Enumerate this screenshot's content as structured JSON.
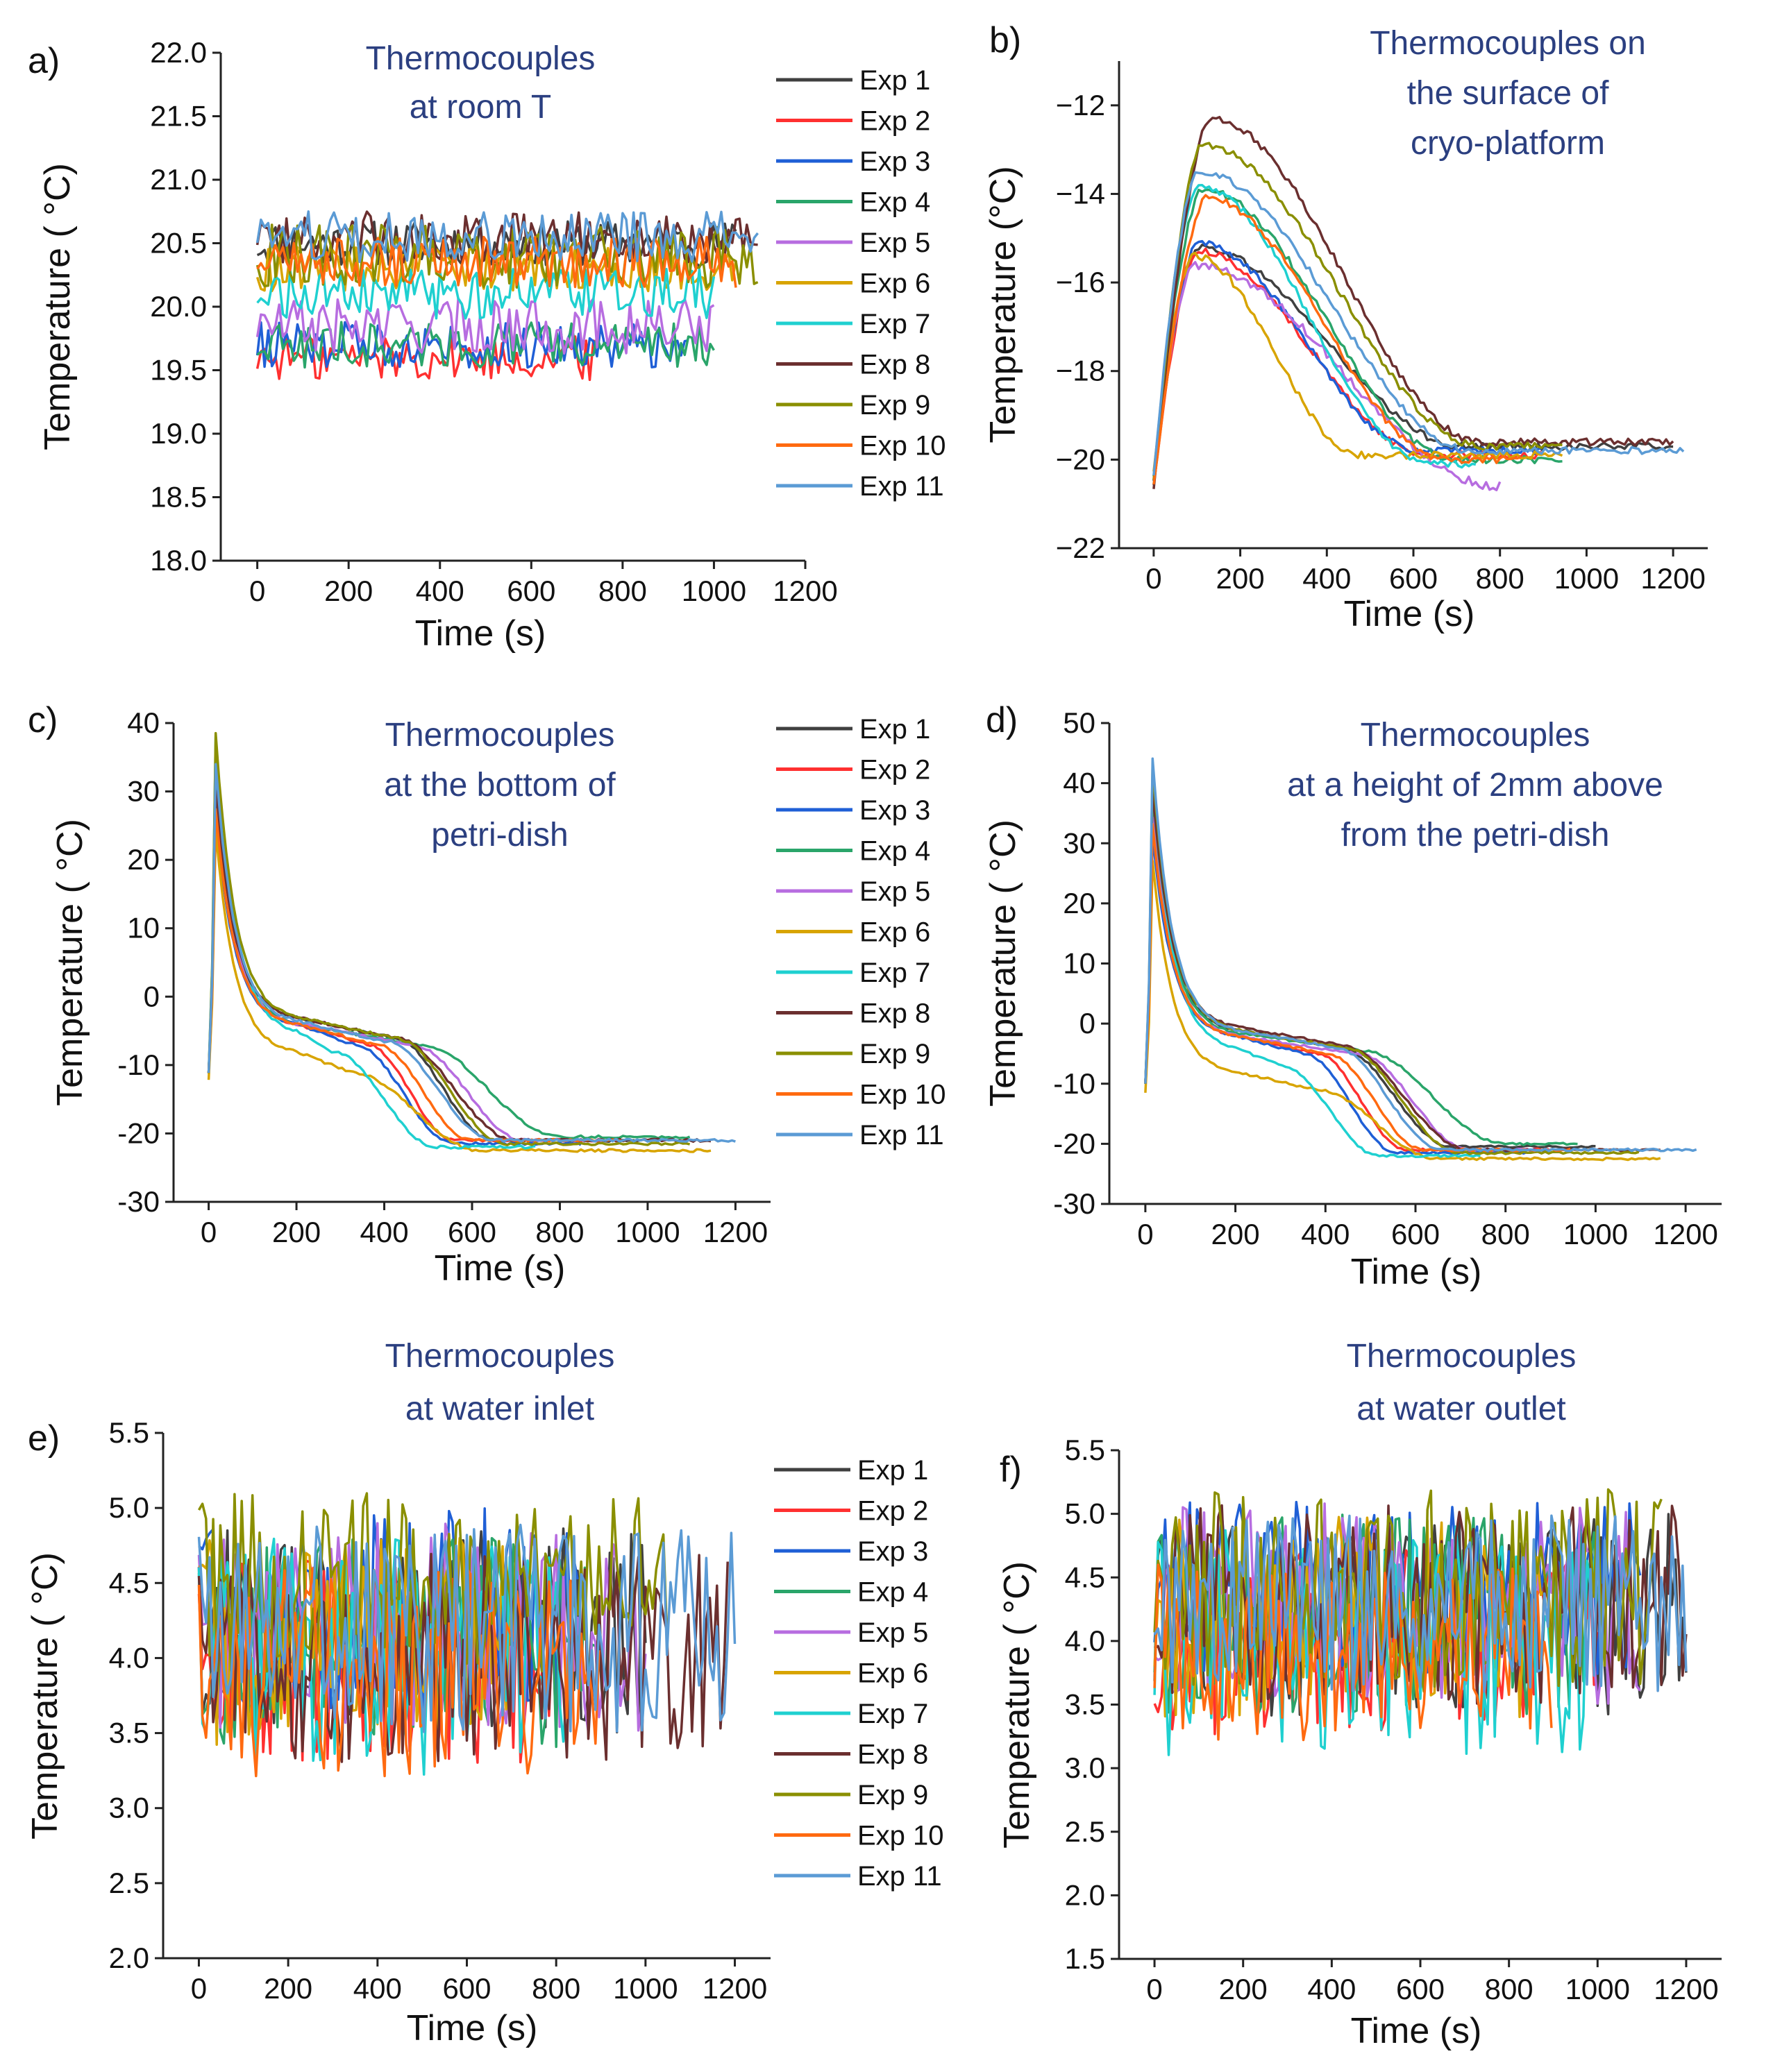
{
  "figure": {
    "caption_hidden": false
  },
  "series_colors": {
    "Exp 1": "#404040",
    "Exp 2": "#ff3030",
    "Exp 3": "#1f5fd6",
    "Exp 4": "#2aa56a",
    "Exp 5": "#b76de0",
    "Exp 6": "#d8a400",
    "Exp 7": "#1fd0d0",
    "Exp 8": "#6b2f2f",
    "Exp 9": "#8a8f00",
    "Exp 10": "#ff6a10",
    "Exp 11": "#5b9bd5"
  },
  "chart_data": [
    {
      "panel": "a)",
      "type": "line",
      "title_lines": [
        "Thermocouples",
        "at room T"
      ],
      "xlabel": "Time (s)",
      "ylabel": "Temperature ( °C)",
      "xlim": [
        -80,
        1200
      ],
      "ylim": [
        18.0,
        22.0
      ],
      "xticks": [
        0,
        200,
        400,
        600,
        800,
        1000,
        1200
      ],
      "yticks": [
        "18.0",
        "18.5",
        "19.0",
        "19.5",
        "20.0",
        "20.5",
        "21.0",
        "21.5",
        "22.0"
      ],
      "legend": [
        "Exp 1",
        "Exp 2",
        "Exp 3",
        "Exp 4",
        "Exp 5",
        "Exp 6",
        "Exp 7",
        "Exp 8",
        "Exp 9",
        "Exp 10",
        "Exp 11"
      ],
      "series": [
        {
          "name": "Exp 1",
          "end": 1050,
          "profile": "flat",
          "level": 20.5,
          "noise": 0.18
        },
        {
          "name": "Exp 2",
          "end": 750,
          "profile": "flat",
          "level": 19.6,
          "noise": 0.18
        },
        {
          "name": "Exp 3",
          "end": 950,
          "profile": "flat",
          "level": 19.7,
          "noise": 0.18
        },
        {
          "name": "Exp 4",
          "end": 1000,
          "profile": "flat",
          "level": 19.7,
          "noise": 0.18
        },
        {
          "name": "Exp 5",
          "end": 1000,
          "profile": "flat",
          "level": 19.85,
          "noise": 0.22
        },
        {
          "name": "Exp 6",
          "end": 1050,
          "profile": "flat",
          "level": 20.3,
          "noise": 0.18
        },
        {
          "name": "Exp 7",
          "end": 1000,
          "profile": "flat",
          "level": 20.1,
          "noise": 0.2
        },
        {
          "name": "Exp 8",
          "end": 1100,
          "profile": "flat",
          "level": 20.55,
          "noise": 0.2
        },
        {
          "name": "Exp 9",
          "end": 1100,
          "profile": "flat",
          "level": 20.4,
          "noise": 0.25
        },
        {
          "name": "Exp 10",
          "end": 1050,
          "profile": "flat",
          "level": 20.35,
          "noise": 0.2
        },
        {
          "name": "Exp 11",
          "end": 1100,
          "profile": "flat",
          "level": 20.55,
          "noise": 0.2
        }
      ]
    },
    {
      "panel": "b)",
      "type": "line",
      "title_lines": [
        "Thermocouples on",
        "the surface of",
        "cryo-platform"
      ],
      "xlabel": "Time (s)",
      "ylabel": "Temperature (°C)",
      "xlim": [
        -80,
        1280
      ],
      "ylim": [
        -22,
        -11
      ],
      "xticks": [
        0,
        200,
        400,
        600,
        800,
        1000,
        1200
      ],
      "yticks": [
        "−22",
        "−20",
        "−18",
        "−16",
        "−14",
        "−12"
      ],
      "legend": [],
      "series": [
        {
          "name": "Exp 1",
          "end": 1200,
          "profile": "peak",
          "start": -20.5,
          "peak": -15.2,
          "tpeak": 100,
          "final": -19.7,
          "tfinal": 720,
          "noise": 0.08
        },
        {
          "name": "Exp 2",
          "end": 900,
          "profile": "peak",
          "start": -20.6,
          "peak": -15.3,
          "tpeak": 100,
          "final": -19.9,
          "tfinal": 640,
          "noise": 0.08
        },
        {
          "name": "Exp 3",
          "end": 900,
          "profile": "peak",
          "start": -20.5,
          "peak": -15.1,
          "tpeak": 100,
          "final": -19.8,
          "tfinal": 620,
          "noise": 0.08
        },
        {
          "name": "Exp 4",
          "end": 950,
          "profile": "peak",
          "start": -20.4,
          "peak": -13.9,
          "tpeak": 110,
          "final": -20.0,
          "tfinal": 700,
          "noise": 0.08
        },
        {
          "name": "Exp 5",
          "end": 800,
          "profile": "peak",
          "start": -20.5,
          "peak": -15.6,
          "tpeak": 90,
          "final": -20.6,
          "tfinal": 800,
          "noise": 0.1
        },
        {
          "name": "Exp 6",
          "end": 950,
          "profile": "peak",
          "start": -20.3,
          "peak": -15.4,
          "tpeak": 90,
          "final": -19.9,
          "tfinal": 480,
          "noise": 0.08
        },
        {
          "name": "Exp 7",
          "end": 750,
          "profile": "peak",
          "start": -20.6,
          "peak": -13.8,
          "tpeak": 100,
          "final": -20.1,
          "tfinal": 640,
          "noise": 0.08
        },
        {
          "name": "Exp 8",
          "end": 1200,
          "profile": "peak",
          "start": -20.7,
          "peak": -12.3,
          "tpeak": 130,
          "final": -19.6,
          "tfinal": 760,
          "noise": 0.08
        },
        {
          "name": "Exp 9",
          "end": 950,
          "profile": "peak",
          "start": -20.5,
          "peak": -12.9,
          "tpeak": 110,
          "final": -19.7,
          "tfinal": 760,
          "noise": 0.08
        },
        {
          "name": "Exp 10",
          "end": 850,
          "profile": "peak",
          "start": -20.6,
          "peak": -14.1,
          "tpeak": 120,
          "final": -20.0,
          "tfinal": 680,
          "noise": 0.08
        },
        {
          "name": "Exp 11",
          "end": 1230,
          "profile": "peak",
          "start": -20.4,
          "peak": -13.5,
          "tpeak": 100,
          "final": -19.8,
          "tfinal": 740,
          "noise": 0.08
        }
      ]
    },
    {
      "panel": "c)",
      "type": "line",
      "title_lines": [
        "Thermocouples",
        "at the bottom of",
        "petri-dish"
      ],
      "xlabel": "Time (s)",
      "ylabel": "Temperature ( °C)",
      "xlim": [
        -80,
        1280
      ],
      "ylim": [
        -30,
        40
      ],
      "xticks": [
        0,
        200,
        400,
        600,
        800,
        1000,
        1200
      ],
      "yticks": [
        "-30",
        "-20",
        "-10",
        "0",
        "10",
        "20",
        "30",
        "40"
      ],
      "legend": [
        "Exp 1",
        "Exp 2",
        "Exp 3",
        "Exp 4",
        "Exp 5",
        "Exp 6",
        "Exp 7",
        "Exp 8",
        "Exp 9",
        "Exp 10",
        "Exp 11"
      ],
      "series": [
        {
          "name": "Exp 1",
          "end": 1000,
          "profile": "decay",
          "start": -11,
          "peak": 30,
          "plateau": -6,
          "tplat": 420,
          "final": -21,
          "tfinal": 650,
          "noise": 0.2
        },
        {
          "name": "Exp 2",
          "end": 900,
          "profile": "decay",
          "start": -11,
          "peak": 28,
          "plateau": -7,
          "tplat": 360,
          "final": -21,
          "tfinal": 560,
          "noise": 0.2
        },
        {
          "name": "Exp 3",
          "end": 850,
          "profile": "decay",
          "start": -11,
          "peak": 27,
          "plateau": -7,
          "tplat": 330,
          "final": -21.5,
          "tfinal": 560,
          "noise": 0.2
        },
        {
          "name": "Exp 4",
          "end": 1100,
          "profile": "decay",
          "start": -11,
          "peak": 32,
          "plateau": -7,
          "tplat": 480,
          "final": -20.5,
          "tfinal": 800,
          "noise": 0.2
        },
        {
          "name": "Exp 5",
          "end": 900,
          "profile": "decay",
          "start": -11,
          "peak": 30,
          "plateau": -7,
          "tplat": 460,
          "final": -21,
          "tfinal": 720,
          "noise": 0.2
        },
        {
          "name": "Exp 6",
          "end": 1150,
          "profile": "decay",
          "start": -12,
          "peak": 25,
          "plateau": -11,
          "tplat": 320,
          "final": -22.5,
          "tfinal": 620,
          "noise": 0.2
        },
        {
          "name": "Exp 7",
          "end": 750,
          "profile": "decay",
          "start": -11,
          "peak": 39,
          "plateau": -8,
          "tplat": 280,
          "final": -22,
          "tfinal": 520,
          "noise": 0.2
        },
        {
          "name": "Exp 8",
          "end": 1150,
          "profile": "decay",
          "start": -11,
          "peak": 31,
          "plateau": -6,
          "tplat": 420,
          "final": -21,
          "tfinal": 700,
          "noise": 0.2
        },
        {
          "name": "Exp 9",
          "end": 1100,
          "profile": "decay",
          "start": -11,
          "peak": 39.5,
          "plateau": -6,
          "tplat": 420,
          "final": -21.5,
          "tfinal": 680,
          "noise": 0.2
        },
        {
          "name": "Exp 10",
          "end": 950,
          "profile": "decay",
          "start": -11,
          "peak": 28,
          "plateau": -7,
          "tplat": 380,
          "final": -21,
          "tfinal": 600,
          "noise": 0.2
        },
        {
          "name": "Exp 11",
          "end": 1200,
          "profile": "decay",
          "start": -11,
          "peak": 35,
          "plateau": -6.5,
          "tplat": 400,
          "final": -21,
          "tfinal": 650,
          "noise": 0.2
        }
      ]
    },
    {
      "panel": "d)",
      "type": "line",
      "title_lines": [
        "Thermocouples",
        "at a height of 2mm above",
        "from the petri-dish"
      ],
      "xlabel": "Time (s)",
      "ylabel": "Temperature ( °C)",
      "xlim": [
        -80,
        1280
      ],
      "ylim": [
        -30,
        50
      ],
      "xticks": [
        0,
        200,
        400,
        600,
        800,
        1000,
        1200
      ],
      "yticks": [
        "-30",
        "-20",
        "-10",
        "0",
        "10",
        "20",
        "30",
        "40",
        "50"
      ],
      "legend": [],
      "series": [
        {
          "name": "Exp 1",
          "end": 1000,
          "profile": "decay",
          "start": -10,
          "peak": 36,
          "plateau": -4,
          "tplat": 430,
          "final": -20.5,
          "tfinal": 680,
          "noise": 0.2
        },
        {
          "name": "Exp 2",
          "end": 900,
          "profile": "decay",
          "start": -10,
          "peak": 33,
          "plateau": -5,
          "tplat": 380,
          "final": -21,
          "tfinal": 580,
          "noise": 0.2
        },
        {
          "name": "Exp 3",
          "end": 850,
          "profile": "decay",
          "start": -10,
          "peak": 32,
          "plateau": -5,
          "tplat": 350,
          "final": -21.5,
          "tfinal": 560,
          "noise": 0.2
        },
        {
          "name": "Exp 4",
          "end": 960,
          "profile": "decay",
          "start": -10,
          "peak": 38,
          "plateau": -4.5,
          "tplat": 480,
          "final": -20,
          "tfinal": 800,
          "noise": 0.2
        },
        {
          "name": "Exp 5",
          "end": 900,
          "profile": "decay",
          "start": -10,
          "peak": 35,
          "plateau": -5,
          "tplat": 470,
          "final": -21,
          "tfinal": 720,
          "noise": 0.2
        },
        {
          "name": "Exp 6",
          "end": 1150,
          "profile": "decay",
          "start": -11.5,
          "peak": 28,
          "plateau": -11,
          "tplat": 380,
          "final": -22.5,
          "tfinal": 650,
          "noise": 0.2
        },
        {
          "name": "Exp 7",
          "end": 750,
          "profile": "decay",
          "start": -10,
          "peak": 42,
          "plateau": -7,
          "tplat": 300,
          "final": -22,
          "tfinal": 520,
          "noise": 0.2
        },
        {
          "name": "Exp 8",
          "end": 1150,
          "profile": "decay",
          "start": -10,
          "peak": 40,
          "plateau": -3.5,
          "tplat": 430,
          "final": -21,
          "tfinal": 720,
          "noise": 0.2
        },
        {
          "name": "Exp 9",
          "end": 1100,
          "profile": "decay",
          "start": -10,
          "peak": 44,
          "plateau": -4,
          "tplat": 440,
          "final": -21.5,
          "tfinal": 700,
          "noise": 0.2
        },
        {
          "name": "Exp 10",
          "end": 950,
          "profile": "decay",
          "start": -10,
          "peak": 34,
          "plateau": -5,
          "tplat": 400,
          "final": -21,
          "tfinal": 620,
          "noise": 0.2
        },
        {
          "name": "Exp 11",
          "end": 1230,
          "profile": "decay",
          "start": -10,
          "peak": 45,
          "plateau": -4,
          "tplat": 420,
          "final": -21,
          "tfinal": 660,
          "noise": 0.2
        }
      ]
    },
    {
      "panel": "e)",
      "type": "line",
      "title_lines": [
        "Thermocouples",
        "at water inlet"
      ],
      "xlabel": "Time (s)",
      "ylabel": "Temperature ( °C)",
      "xlim": [
        -80,
        1280
      ],
      "ylim": [
        2.0,
        5.5
      ],
      "xticks": [
        0,
        200,
        400,
        600,
        800,
        1000,
        1200
      ],
      "yticks": [
        "2.0",
        "2.5",
        "3.0",
        "3.5",
        "4.0",
        "4.5",
        "5.0",
        "5.5"
      ],
      "legend": [
        "Exp 1",
        "Exp 2",
        "Exp 3",
        "Exp 4",
        "Exp 5",
        "Exp 6",
        "Exp 7",
        "Exp 8",
        "Exp 9",
        "Exp 10",
        "Exp 11"
      ],
      "series": [
        {
          "name": "Exp 1",
          "end": 1000,
          "profile": "flat",
          "level": 4.2,
          "noise": 0.7
        },
        {
          "name": "Exp 2",
          "end": 800,
          "profile": "flat",
          "level": 4.0,
          "noise": 0.7
        },
        {
          "name": "Exp 3",
          "end": 850,
          "profile": "flat",
          "level": 4.3,
          "noise": 0.7
        },
        {
          "name": "Exp 4",
          "end": 900,
          "profile": "flat",
          "level": 4.1,
          "noise": 0.7
        },
        {
          "name": "Exp 5",
          "end": 1000,
          "profile": "flat",
          "level": 4.2,
          "noise": 0.7
        },
        {
          "name": "Exp 6",
          "end": 700,
          "profile": "flat",
          "level": 4.1,
          "noise": 0.7
        },
        {
          "name": "Exp 7",
          "end": 850,
          "profile": "flat",
          "level": 4.0,
          "noise": 0.8
        },
        {
          "name": "Exp 8",
          "end": 1190,
          "profile": "flat",
          "level": 4.0,
          "noise": 0.7
        },
        {
          "name": "Exp 9",
          "end": 1050,
          "profile": "flat",
          "level": 4.5,
          "noise": 0.6
        },
        {
          "name": "Exp 10",
          "end": 900,
          "profile": "flat",
          "level": 3.9,
          "noise": 0.7
        },
        {
          "name": "Exp 11",
          "end": 1200,
          "profile": "flat",
          "level": 4.2,
          "noise": 0.7
        }
      ]
    },
    {
      "panel": "f)",
      "type": "line",
      "title_lines": [
        "Thermocouples",
        "at water outlet"
      ],
      "xlabel": "Time (s)",
      "ylabel": "Temperature ( °C)",
      "xlim": [
        -80,
        1280
      ],
      "ylim": [
        1.5,
        5.5
      ],
      "xticks": [
        0,
        200,
        400,
        600,
        800,
        1000,
        1200
      ],
      "yticks": [
        "1.5",
        "2.0",
        "2.5",
        "3.0",
        "3.5",
        "4.0",
        "4.5",
        "5.0",
        "5.5"
      ],
      "legend": [],
      "series": [
        {
          "name": "Exp 1",
          "end": 1200,
          "profile": "flat",
          "level": 4.2,
          "noise": 0.8
        },
        {
          "name": "Exp 2",
          "end": 1000,
          "profile": "flat",
          "level": 4.0,
          "noise": 0.8
        },
        {
          "name": "Exp 3",
          "end": 1100,
          "profile": "flat",
          "level": 4.4,
          "noise": 0.7
        },
        {
          "name": "Exp 4",
          "end": 1000,
          "profile": "flat",
          "level": 4.2,
          "noise": 0.8
        },
        {
          "name": "Exp 5",
          "end": 1100,
          "profile": "flat",
          "level": 4.3,
          "noise": 0.8
        },
        {
          "name": "Exp 6",
          "end": 900,
          "profile": "flat",
          "level": 4.2,
          "noise": 0.8
        },
        {
          "name": "Exp 7",
          "end": 1000,
          "profile": "flat",
          "level": 4.0,
          "noise": 0.9
        },
        {
          "name": "Exp 8",
          "end": 1200,
          "profile": "flat",
          "level": 4.3,
          "noise": 0.8
        },
        {
          "name": "Exp 9",
          "end": 1150,
          "profile": "flat",
          "level": 4.4,
          "noise": 0.8
        },
        {
          "name": "Exp 10",
          "end": 900,
          "profile": "flat",
          "level": 3.9,
          "noise": 0.7
        },
        {
          "name": "Exp 11",
          "end": 1200,
          "profile": "flat",
          "level": 4.3,
          "noise": 0.7
        }
      ]
    }
  ]
}
